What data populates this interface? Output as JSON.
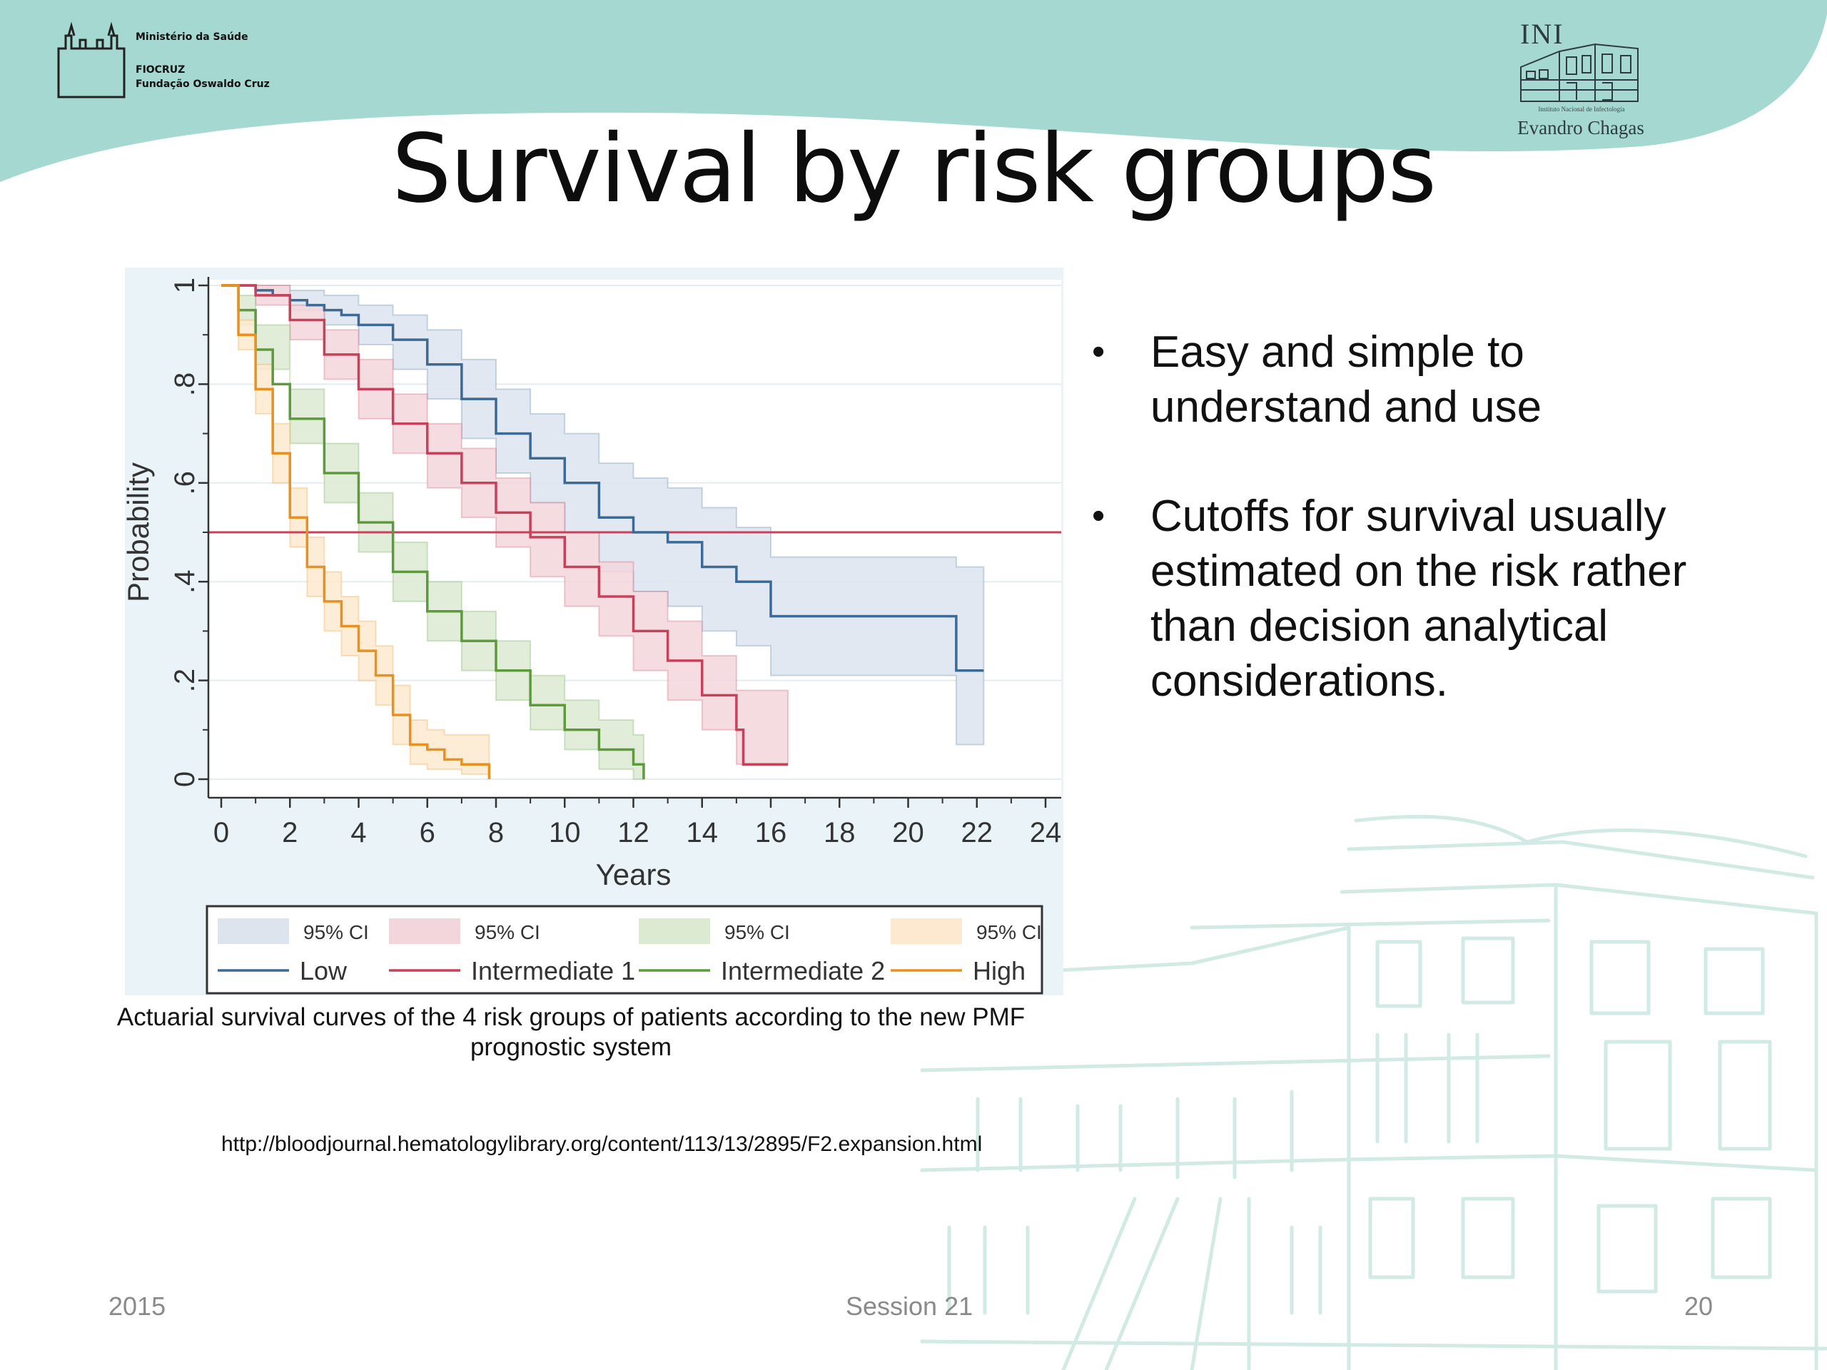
{
  "header": {
    "org_lines": [
      "Ministério da Saúde",
      "FIOCRUZ",
      "Fundação Oswaldo Cruz"
    ],
    "institute_abbr": "INI",
    "institute_full": "Instituto Nacional de Infectologia",
    "institute_name": "Evandro Chagas"
  },
  "slide": {
    "title": "Survival by risk groups",
    "bullets": [
      "Easy and simple to understand and use",
      "Cutoffs for survival usually estimated on the risk rather than decision analytical considerations."
    ],
    "caption": "Actuarial survival curves of the 4 risk groups of patients according to the new PMF prognostic system",
    "source": "http://bloodjournal.hematologylibrary.org/content/113/13/2895/F2.expansion.html"
  },
  "footer": {
    "year": "2015",
    "session": "Session 21",
    "page": "20"
  },
  "chart_data": {
    "type": "line",
    "xlabel": "Years",
    "ylabel": "Probability",
    "xlim": [
      0,
      24
    ],
    "ylim": [
      0,
      1
    ],
    "x_ticks": [
      "0",
      "2",
      "4",
      "6",
      "8",
      "10",
      "12",
      "14",
      "16",
      "18",
      "20",
      "22",
      "24"
    ],
    "y_ticks": [
      {
        "v": 0,
        "label": "0"
      },
      {
        "v": 0.2,
        "label": ".2"
      },
      {
        "v": 0.4,
        "label": ".4"
      },
      {
        "v": 0.6,
        "label": ".6"
      },
      {
        "v": 0.8,
        "label": ".8"
      },
      {
        "v": 1,
        "label": "1"
      }
    ],
    "reference_line": 0.5,
    "reference_color": "#c8405a",
    "ci_label": "95% CI",
    "legend_position": "bottom",
    "series": [
      {
        "name": "Low",
        "color": "#3c6a94",
        "band": "#dde4ee",
        "points": [
          [
            0,
            1
          ],
          [
            0.5,
            1
          ],
          [
            1,
            0.99
          ],
          [
            1.5,
            0.98
          ],
          [
            2,
            0.97
          ],
          [
            2.5,
            0.96
          ],
          [
            3,
            0.95
          ],
          [
            3.5,
            0.94
          ],
          [
            4,
            0.92
          ],
          [
            5,
            0.89
          ],
          [
            6,
            0.84
          ],
          [
            7,
            0.77
          ],
          [
            8,
            0.7
          ],
          [
            9,
            0.65
          ],
          [
            10,
            0.6
          ],
          [
            11,
            0.53
          ],
          [
            12,
            0.5
          ],
          [
            13,
            0.48
          ],
          [
            14,
            0.43
          ],
          [
            15,
            0.4
          ],
          [
            16,
            0.33
          ],
          [
            20,
            0.33
          ],
          [
            21.4,
            0.33
          ],
          [
            21.4,
            0.22
          ],
          [
            22.2,
            0.22
          ]
        ],
        "lower": [
          [
            0,
            1
          ],
          [
            1,
            0.98
          ],
          [
            2,
            0.95
          ],
          [
            3,
            0.92
          ],
          [
            4,
            0.88
          ],
          [
            5,
            0.83
          ],
          [
            6,
            0.77
          ],
          [
            7,
            0.69
          ],
          [
            8,
            0.62
          ],
          [
            9,
            0.56
          ],
          [
            10,
            0.5
          ],
          [
            11,
            0.42
          ],
          [
            12,
            0.38
          ],
          [
            13,
            0.35
          ],
          [
            14,
            0.3
          ],
          [
            15,
            0.27
          ],
          [
            16,
            0.21
          ],
          [
            20,
            0.21
          ],
          [
            21.4,
            0.21
          ],
          [
            21.4,
            0.07
          ],
          [
            22.2,
            0.07
          ]
        ],
        "upper": [
          [
            0,
            1
          ],
          [
            1,
            1
          ],
          [
            2,
            0.99
          ],
          [
            3,
            0.98
          ],
          [
            4,
            0.96
          ],
          [
            5,
            0.94
          ],
          [
            6,
            0.91
          ],
          [
            7,
            0.85
          ],
          [
            8,
            0.79
          ],
          [
            9,
            0.74
          ],
          [
            10,
            0.7
          ],
          [
            11,
            0.64
          ],
          [
            12,
            0.61
          ],
          [
            13,
            0.59
          ],
          [
            14,
            0.55
          ],
          [
            15,
            0.51
          ],
          [
            16,
            0.45
          ],
          [
            20,
            0.45
          ],
          [
            21.4,
            0.43
          ],
          [
            22.2,
            0.42
          ]
        ]
      },
      {
        "name": "Intermediate 1",
        "color": "#c8405a",
        "band": "#f2d6dc",
        "points": [
          [
            0,
            1
          ],
          [
            1,
            0.98
          ],
          [
            2,
            0.93
          ],
          [
            3,
            0.86
          ],
          [
            4,
            0.79
          ],
          [
            5,
            0.72
          ],
          [
            6,
            0.66
          ],
          [
            7,
            0.6
          ],
          [
            8,
            0.54
          ],
          [
            9,
            0.49
          ],
          [
            10,
            0.43
          ],
          [
            11,
            0.37
          ],
          [
            12,
            0.3
          ],
          [
            13,
            0.24
          ],
          [
            14,
            0.17
          ],
          [
            15,
            0.1
          ],
          [
            15.2,
            0.03
          ],
          [
            16.5,
            0.03
          ]
        ],
        "lower": [
          [
            0,
            1
          ],
          [
            1,
            0.96
          ],
          [
            2,
            0.89
          ],
          [
            3,
            0.81
          ],
          [
            4,
            0.73
          ],
          [
            5,
            0.66
          ],
          [
            6,
            0.59
          ],
          [
            7,
            0.53
          ],
          [
            8,
            0.47
          ],
          [
            9,
            0.41
          ],
          [
            10,
            0.35
          ],
          [
            11,
            0.29
          ],
          [
            12,
            0.22
          ],
          [
            13,
            0.16
          ],
          [
            14,
            0.1
          ],
          [
            15,
            0.03
          ],
          [
            16.5,
            0.03
          ]
        ],
        "upper": [
          [
            0,
            1
          ],
          [
            1,
            1
          ],
          [
            2,
            0.96
          ],
          [
            3,
            0.91
          ],
          [
            4,
            0.85
          ],
          [
            5,
            0.78
          ],
          [
            6,
            0.72
          ],
          [
            7,
            0.67
          ],
          [
            8,
            0.61
          ],
          [
            9,
            0.56
          ],
          [
            10,
            0.5
          ],
          [
            11,
            0.44
          ],
          [
            12,
            0.38
          ],
          [
            13,
            0.32
          ],
          [
            14,
            0.25
          ],
          [
            15,
            0.18
          ],
          [
            16.5,
            0.13
          ]
        ]
      },
      {
        "name": "Intermediate 2",
        "color": "#5c9a3c",
        "band": "#dcead2",
        "points": [
          [
            0,
            1
          ],
          [
            0.5,
            0.95
          ],
          [
            1,
            0.87
          ],
          [
            1.5,
            0.8
          ],
          [
            2,
            0.73
          ],
          [
            3,
            0.62
          ],
          [
            4,
            0.52
          ],
          [
            5,
            0.42
          ],
          [
            6,
            0.34
          ],
          [
            7,
            0.28
          ],
          [
            8,
            0.22
          ],
          [
            9,
            0.15
          ],
          [
            10,
            0.1
          ],
          [
            11,
            0.06
          ],
          [
            12,
            0.03
          ],
          [
            12.3,
            0
          ],
          [
            12.3,
            0.01
          ]
        ],
        "lower": [
          [
            0,
            1
          ],
          [
            0.5,
            0.92
          ],
          [
            1,
            0.83
          ],
          [
            2,
            0.68
          ],
          [
            3,
            0.56
          ],
          [
            4,
            0.46
          ],
          [
            5,
            0.36
          ],
          [
            6,
            0.28
          ],
          [
            7,
            0.22
          ],
          [
            8,
            0.16
          ],
          [
            9,
            0.1
          ],
          [
            10,
            0.06
          ],
          [
            11,
            0.02
          ],
          [
            12,
            0.0
          ],
          [
            12.3,
            0
          ]
        ],
        "upper": [
          [
            0,
            1
          ],
          [
            0.5,
            0.98
          ],
          [
            1,
            0.92
          ],
          [
            2,
            0.79
          ],
          [
            3,
            0.68
          ],
          [
            4,
            0.58
          ],
          [
            5,
            0.48
          ],
          [
            6,
            0.4
          ],
          [
            7,
            0.34
          ],
          [
            8,
            0.28
          ],
          [
            9,
            0.21
          ],
          [
            10,
            0.16
          ],
          [
            11,
            0.12
          ],
          [
            12,
            0.09
          ],
          [
            12.3,
            0.08
          ]
        ]
      },
      {
        "name": "High",
        "color": "#e8911f",
        "band": "#fde9cf",
        "points": [
          [
            0,
            1
          ],
          [
            0.5,
            0.9
          ],
          [
            1,
            0.79
          ],
          [
            1.5,
            0.66
          ],
          [
            2,
            0.53
          ],
          [
            2.5,
            0.43
          ],
          [
            3,
            0.36
          ],
          [
            3.5,
            0.31
          ],
          [
            4,
            0.26
          ],
          [
            4.5,
            0.21
          ],
          [
            5,
            0.13
          ],
          [
            5.5,
            0.07
          ],
          [
            6,
            0.06
          ],
          [
            6.5,
            0.04
          ],
          [
            7,
            0.03
          ],
          [
            7.8,
            0.03
          ],
          [
            7.8,
            0.0
          ]
        ],
        "lower": [
          [
            0,
            1
          ],
          [
            0.5,
            0.87
          ],
          [
            1,
            0.74
          ],
          [
            1.5,
            0.6
          ],
          [
            2,
            0.47
          ],
          [
            2.5,
            0.37
          ],
          [
            3,
            0.3
          ],
          [
            3.5,
            0.25
          ],
          [
            4,
            0.2
          ],
          [
            4.5,
            0.15
          ],
          [
            5,
            0.07
          ],
          [
            5.5,
            0.03
          ],
          [
            6,
            0.02
          ],
          [
            7,
            0.01
          ],
          [
            7.8,
            0.01
          ]
        ],
        "upper": [
          [
            0,
            1
          ],
          [
            0.5,
            0.93
          ],
          [
            1,
            0.84
          ],
          [
            1.5,
            0.72
          ],
          [
            2,
            0.59
          ],
          [
            2.5,
            0.49
          ],
          [
            3,
            0.42
          ],
          [
            3.5,
            0.37
          ],
          [
            4,
            0.32
          ],
          [
            4.5,
            0.27
          ],
          [
            5,
            0.19
          ],
          [
            5.5,
            0.12
          ],
          [
            6,
            0.1
          ],
          [
            6.5,
            0.09
          ],
          [
            7,
            0.09
          ],
          [
            7.8,
            0.09
          ]
        ]
      }
    ]
  }
}
